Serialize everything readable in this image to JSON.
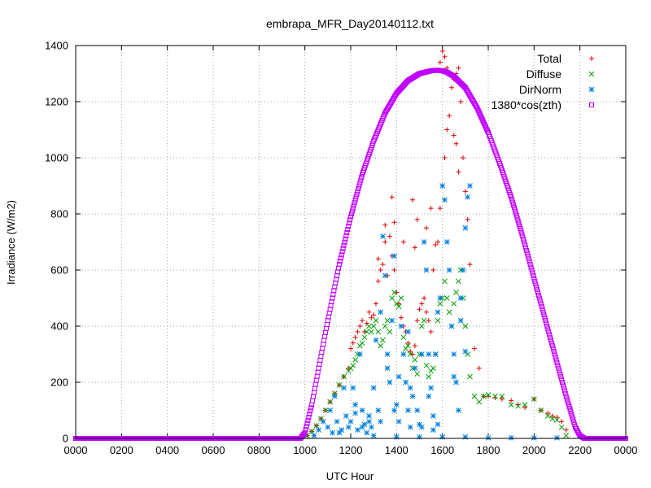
{
  "chart_data": {
    "type": "scatter",
    "title": "embrapa_MFR_Day20140112.txt",
    "xlabel": "UTC Hour",
    "ylabel": "Irradiance (W/m2)",
    "xlim": [
      0,
      24
    ],
    "ylim": [
      0,
      1400
    ],
    "xticks": [
      "0000",
      "0200",
      "0400",
      "0600",
      "0800",
      "1000",
      "1200",
      "1400",
      "1600",
      "1800",
      "2000",
      "2200",
      "0000"
    ],
    "yticks": [
      0,
      200,
      400,
      600,
      800,
      1000,
      1200,
      1400
    ],
    "grid": true,
    "legend_position": "top-right",
    "series": [
      {
        "name": "Total",
        "marker": "+",
        "color": "#e00000",
        "x": [
          10.1,
          10.3,
          10.5,
          10.7,
          10.9,
          11.1,
          11.3,
          11.5,
          11.7,
          11.9,
          12.0,
          12.1,
          12.2,
          12.3,
          12.4,
          12.5,
          12.6,
          12.7,
          12.8,
          12.9,
          13.0,
          13.1,
          13.2,
          13.3,
          13.4,
          13.5,
          13.6,
          13.7,
          13.8,
          13.9,
          14.0,
          14.1,
          14.2,
          14.3,
          14.4,
          14.5,
          14.6,
          14.7,
          14.8,
          14.9,
          15.0,
          15.1,
          15.2,
          15.3,
          15.4,
          15.5,
          15.6,
          15.7,
          15.8,
          15.9,
          16.0,
          16.1,
          16.2,
          16.3,
          16.4,
          16.5,
          16.6,
          16.7,
          16.8,
          16.9,
          17.0,
          17.1,
          17.2,
          17.4,
          17.6,
          17.8,
          18.0,
          18.3,
          18.6,
          19.0,
          19.3,
          19.6,
          20.0,
          20.3,
          20.6,
          20.8,
          21.0,
          21.2,
          21.4,
          15.9,
          16.0,
          16.1,
          16.2,
          16.5,
          16.6,
          16.7,
          15.5,
          15.3,
          14.7,
          14.9,
          13.8,
          13.5,
          13.2,
          13.9,
          14.3,
          14.8
        ],
        "y": [
          10,
          25,
          45,
          70,
          100,
          130,
          160,
          190,
          220,
          250,
          320,
          340,
          360,
          380,
          400,
          420,
          380,
          410,
          450,
          430,
          440,
          480,
          560,
          600,
          620,
          700,
          580,
          720,
          650,
          600,
          520,
          480,
          430,
          400,
          380,
          340,
          310,
          300,
          330,
          420,
          460,
          480,
          500,
          450,
          420,
          380,
          600,
          690,
          700,
          820,
          900,
          1000,
          1100,
          1150,
          1250,
          1280,
          1300,
          1320,
          1200,
          1000,
          880,
          780,
          620,
          320,
          250,
          150,
          150,
          145,
          140,
          135,
          120,
          110,
          140,
          100,
          90,
          80,
          75,
          60,
          30,
          1340,
          1380,
          1360,
          1320,
          1080,
          1050,
          950,
          820,
          750,
          850,
          780,
          860,
          760,
          640,
          770,
          700,
          680
        ]
      },
      {
        "name": "Diffuse",
        "marker": "x",
        "color": "#00a000",
        "x": [
          10.1,
          10.3,
          10.5,
          10.7,
          10.9,
          11.1,
          11.3,
          11.5,
          11.7,
          11.9,
          12.0,
          12.1,
          12.2,
          12.3,
          12.4,
          12.5,
          12.6,
          12.7,
          12.8,
          12.9,
          13.0,
          13.1,
          13.2,
          13.3,
          13.4,
          13.5,
          13.6,
          13.7,
          13.8,
          13.9,
          14.0,
          14.1,
          14.2,
          14.3,
          14.4,
          14.5,
          14.6,
          14.7,
          14.8,
          14.9,
          15.0,
          15.1,
          15.2,
          15.3,
          15.4,
          15.5,
          15.6,
          15.7,
          15.8,
          15.9,
          16.0,
          16.1,
          16.2,
          16.3,
          16.4,
          16.5,
          16.6,
          16.7,
          16.8,
          16.9,
          17.0,
          17.1,
          17.2,
          17.4,
          17.6,
          17.8,
          18.0,
          18.3,
          18.6,
          19.0,
          19.3,
          19.6,
          20.0,
          20.3,
          20.6,
          20.8,
          21.0,
          21.2,
          21.4
        ],
        "y": [
          10,
          25,
          45,
          70,
          100,
          130,
          160,
          190,
          220,
          240,
          250,
          260,
          280,
          300,
          330,
          340,
          360,
          380,
          400,
          380,
          400,
          420,
          380,
          330,
          350,
          400,
          420,
          380,
          500,
          520,
          480,
          470,
          500,
          360,
          320,
          330,
          300,
          250,
          280,
          230,
          300,
          400,
          420,
          260,
          220,
          240,
          250,
          300,
          420,
          480,
          500,
          560,
          500,
          450,
          400,
          480,
          520,
          560,
          600,
          500,
          400,
          300,
          220,
          150,
          130,
          150,
          155,
          150,
          150,
          120,
          115,
          120,
          140,
          100,
          80,
          70,
          65,
          40,
          10
        ]
      },
      {
        "name": "DirNorm",
        "marker": "*",
        "color": "#0080e0",
        "x": [
          10.4,
          10.6,
          10.8,
          11.0,
          11.1,
          11.2,
          11.3,
          11.4,
          11.6,
          11.7,
          11.8,
          11.9,
          12.0,
          12.1,
          12.2,
          12.3,
          12.4,
          12.5,
          12.6,
          12.7,
          12.8,
          12.9,
          13.0,
          13.1,
          13.2,
          13.3,
          13.4,
          13.5,
          13.6,
          13.7,
          13.8,
          13.9,
          14.0,
          14.1,
          14.2,
          14.3,
          14.4,
          14.5,
          14.6,
          14.7,
          14.8,
          14.9,
          15.0,
          15.1,
          15.2,
          15.3,
          15.4,
          15.5,
          15.6,
          15.7,
          15.8,
          15.9,
          16.0,
          16.1,
          16.2,
          16.3,
          16.4,
          16.5,
          16.6,
          16.7,
          16.8,
          16.9,
          17.0,
          17.1,
          17.2,
          12.5,
          13.3,
          13.6,
          14.1,
          14.5,
          15.1,
          15.4,
          15.6,
          16.5,
          16.8,
          17.0,
          13.9,
          14.6,
          15.8,
          12.8,
          12.2,
          11.5,
          13.0,
          14.0,
          15.0,
          16.0,
          17.0,
          18.0,
          19.0,
          20.0,
          21.0
        ],
        "y": [
          10,
          30,
          60,
          40,
          100,
          20,
          150,
          60,
          30,
          180,
          80,
          40,
          60,
          180,
          90,
          30,
          300,
          100,
          50,
          20,
          80,
          40,
          180,
          350,
          100,
          60,
          720,
          580,
          300,
          200,
          420,
          650,
          120,
          60,
          400,
          300,
          200,
          100,
          40,
          150,
          250,
          100,
          50,
          300,
          700,
          600,
          300,
          180,
          80,
          300,
          450,
          500,
          900,
          850,
          700,
          600,
          400,
          300,
          200,
          100,
          500,
          600,
          750,
          860,
          900,
          40,
          450,
          250,
          220,
          380,
          40,
          150,
          30,
          220,
          420,
          310,
          100,
          180,
          50,
          60,
          120,
          20,
          10,
          5,
          5,
          5,
          5,
          2,
          2,
          2,
          2
        ]
      },
      {
        "name": "1380*cos(zth)",
        "marker": "square",
        "color": "#c000ff",
        "x": [
          0,
          2,
          4,
          6,
          8,
          9.8,
          10.0,
          10.3,
          10.6,
          11.0,
          11.5,
          12.0,
          12.5,
          13.0,
          13.5,
          14.0,
          14.5,
          15.0,
          15.5,
          15.8,
          16.0,
          16.2,
          16.5,
          17.0,
          17.5,
          18.0,
          18.5,
          19.0,
          19.5,
          20.0,
          20.5,
          21.0,
          21.4,
          21.8,
          22.0,
          22.2,
          22.4,
          23,
          24
        ],
        "y": [
          0,
          0,
          0,
          0,
          0,
          0,
          20,
          120,
          250,
          420,
          620,
          790,
          940,
          1060,
          1160,
          1230,
          1275,
          1300,
          1310,
          1312,
          1310,
          1305,
          1290,
          1250,
          1180,
          1090,
          980,
          860,
          720,
          570,
          420,
          270,
          150,
          40,
          10,
          0,
          0,
          0,
          0
        ]
      }
    ]
  }
}
